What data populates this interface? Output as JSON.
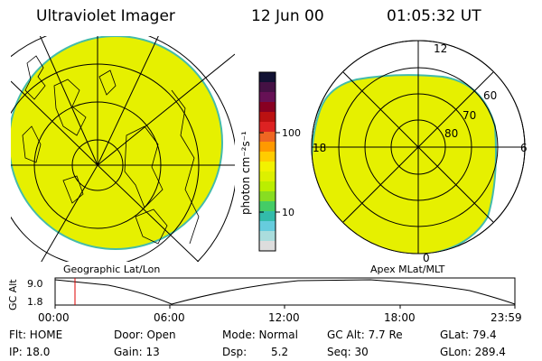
{
  "header": {
    "instrument": "Ultraviolet Imager",
    "date": "12 Jun 00",
    "time": "01:05:32 UT"
  },
  "left_panel": {
    "caption": "Geographic Lat/Lon",
    "image_color": "#e6f000"
  },
  "right_panel": {
    "caption": "Apex MLat/MLT",
    "mlt_labels": [
      "12",
      "18",
      "6",
      "0"
    ],
    "mlat_labels": [
      "60",
      "70",
      "80"
    ],
    "image_color": "#e6f000"
  },
  "colorbar": {
    "unit_label": "photon cm⁻²s⁻¹",
    "tick_labels": [
      "100",
      "10"
    ],
    "colors": [
      "#111133",
      "#441144",
      "#661155",
      "#880022",
      "#bb1111",
      "#dd2222",
      "#ee6622",
      "#ff9900",
      "#ffcc00",
      "#f2f200",
      "#ddf000",
      "#bbee00",
      "#88dd22",
      "#44cc66",
      "#33bbaa",
      "#66ccdd",
      "#aadddd",
      "#dddddd"
    ]
  },
  "timeline": {
    "ylabel": "GC Alt",
    "y_ticks": [
      "9.0",
      "1.8"
    ],
    "x_ticks": [
      "00:00",
      "06:00",
      "12:00",
      "18:00",
      "23:59"
    ],
    "cursor_color": "#dd0000"
  },
  "info": {
    "flt": "Flt: HOME",
    "ip": "IP: 18.0",
    "door": "Door: Open",
    "gain": "Gain: 13",
    "mode": "Mode: Normal",
    "dsp_label": "Dsp:",
    "dsp_value": "5.2",
    "gc_alt": "GC Alt: 7.7 Re",
    "seq": "Seq: 30",
    "glat": "GLat: 79.4",
    "glon": "GLon: 289.4"
  }
}
